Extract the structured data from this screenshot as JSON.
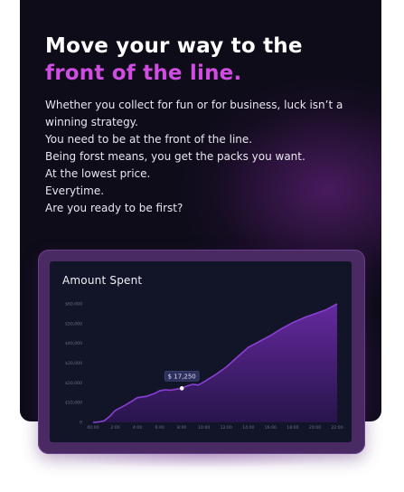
{
  "hero": {
    "headline_line1": "Move your way to the",
    "headline_line2": "front of the line.",
    "body_lines": [
      "Whether you collect for fun or for business, luck isn’t a",
      "winning strategy.",
      "You need to be at the front of the line.",
      "Being forst means, you get the packs you want.",
      "At the lowest price.",
      "Everytime.",
      "Are you ready to be first?"
    ]
  },
  "colors": {
    "card_background": "#0e0c19",
    "accent": "#d04ce2",
    "chart_line": "#8a3fd4",
    "chart_fill": "#5b2391",
    "tooltip_bg": "#2b3158"
  },
  "tooltip": {
    "label": "$ 17,250"
  },
  "chart_data": {
    "type": "area",
    "title": "Amount Spent",
    "xlabel": "",
    "ylabel": "",
    "x_tick_labels": [
      "00:00",
      "2:00",
      "4:00",
      "6:00",
      "8:00",
      "10:00",
      "12:00",
      "14:00",
      "16:00",
      "18:00",
      "20:00",
      "22:00"
    ],
    "y_tick_labels": [
      "0",
      "$10,000",
      "$20,000",
      "$30,000",
      "$40,000",
      "$50,000",
      "$60,000"
    ],
    "ylim": [
      0,
      60000
    ],
    "xlim": [
      0,
      22
    ],
    "grid": false,
    "highlight": {
      "x": 8,
      "y": 17250,
      "label": "$ 17,250"
    },
    "series": [
      {
        "x": [
          0,
          0.5,
          1,
          1.5,
          2,
          3,
          4,
          4.8,
          5.5,
          6,
          6.5,
          7,
          7.5,
          8,
          8.5,
          9,
          9.5,
          10,
          11,
          12,
          13,
          14,
          15,
          16,
          17,
          18,
          19,
          20,
          21,
          22
        ],
        "values": [
          0,
          200,
          800,
          3000,
          6000,
          9000,
          12500,
          13200,
          14500,
          16000,
          16500,
          16300,
          16800,
          17250,
          18500,
          19300,
          18900,
          20500,
          24000,
          28000,
          33000,
          38000,
          41000,
          44000,
          47500,
          50500,
          53000,
          55000,
          57000,
          60000
        ]
      }
    ]
  }
}
